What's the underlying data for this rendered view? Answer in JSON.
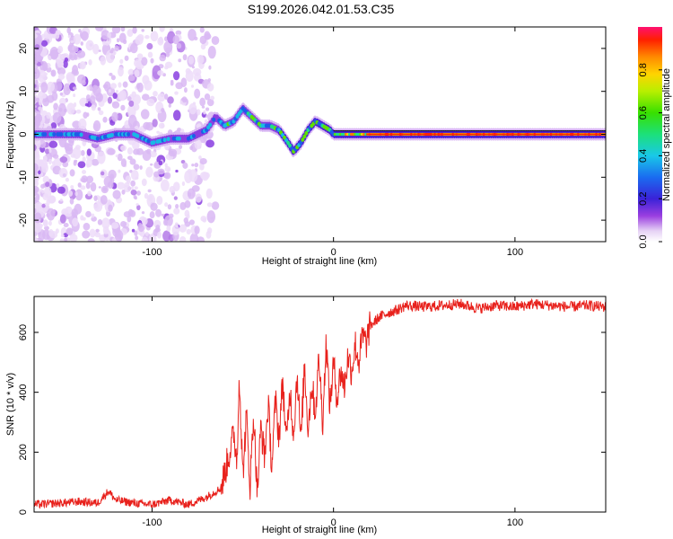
{
  "title": "S199.2026.042.01.53.C35",
  "chart_data": [
    {
      "type": "heatmap",
      "name": "spectrogram",
      "xlabel": "Height of straight line (km)",
      "ylabel": "Frequency (Hz)",
      "xlim": [
        -165,
        150
      ],
      "ylim": [
        -25,
        25
      ],
      "xticks": [
        -100,
        0,
        100
      ],
      "yticks": [
        -20,
        -10,
        0,
        10,
        20
      ],
      "colorbar": {
        "label": "Normalized spectral amplitude",
        "range": [
          0,
          1
        ],
        "ticks": [
          0.0,
          0.2,
          0.4,
          0.6,
          0.8
        ],
        "tick_labels": [
          "0.0",
          "0.2",
          "0.4",
          "0.6",
          "0.8"
        ]
      },
      "dominant_frequency_trace": {
        "x": [
          -160,
          -150,
          -140,
          -130,
          -120,
          -110,
          -100,
          -90,
          -80,
          -75,
          -70,
          -65,
          -60,
          -55,
          -50,
          -45,
          -40,
          -35,
          -30,
          -25,
          -22,
          -18,
          -14,
          -10,
          -6,
          -2,
          0,
          5,
          10,
          20,
          40,
          60,
          80,
          100,
          120,
          140,
          150
        ],
        "y": [
          0,
          0,
          0,
          -1,
          0,
          0,
          -2,
          -1,
          -1,
          0,
          1,
          4,
          2,
          3,
          6,
          4,
          2,
          2,
          1,
          -2,
          -4,
          -2,
          1,
          3,
          2,
          1,
          0,
          0,
          0,
          0,
          0,
          0,
          0,
          0,
          0,
          0,
          0
        ]
      }
    },
    {
      "type": "line",
      "name": "snr",
      "xlabel": "Height of straight line (km)",
      "ylabel": "SNR (10 * v/v)",
      "xlim": [
        -165,
        150
      ],
      "ylim": [
        0,
        720
      ],
      "xticks": [
        -100,
        0,
        100
      ],
      "yticks": [
        0,
        200,
        400,
        600
      ],
      "color": "#e8211c",
      "series": [
        {
          "name": "SNR",
          "x": [
            -165,
            -150,
            -140,
            -130,
            -124,
            -120,
            -110,
            -100,
            -90,
            -80,
            -70,
            -62,
            -58,
            -55,
            -53,
            -52,
            -50,
            -48,
            -46,
            -44,
            -42,
            -40,
            -38,
            -36,
            -34,
            -32,
            -30,
            -28,
            -26,
            -24,
            -22,
            -20,
            -18,
            -16,
            -14,
            -12,
            -10,
            -8,
            -6,
            -4,
            -2,
            0,
            2,
            4,
            6,
            8,
            10,
            12,
            14,
            16,
            18,
            20,
            25,
            30,
            35,
            40,
            50,
            60,
            70,
            80,
            90,
            100,
            110,
            120,
            130,
            140,
            150
          ],
          "y": [
            25,
            30,
            35,
            30,
            70,
            40,
            30,
            25,
            40,
            25,
            50,
            80,
            180,
            260,
            170,
            480,
            120,
            320,
            90,
            330,
            60,
            290,
            180,
            360,
            150,
            370,
            250,
            440,
            230,
            410,
            260,
            470,
            230,
            490,
            280,
            430,
            330,
            520,
            300,
            570,
            350,
            500,
            380,
            470,
            420,
            520,
            470,
            560,
            500,
            590,
            560,
            620,
            650,
            665,
            675,
            690,
            685,
            690,
            695,
            680,
            690,
            685,
            695,
            690,
            685,
            690,
            685
          ]
        }
      ]
    }
  ]
}
